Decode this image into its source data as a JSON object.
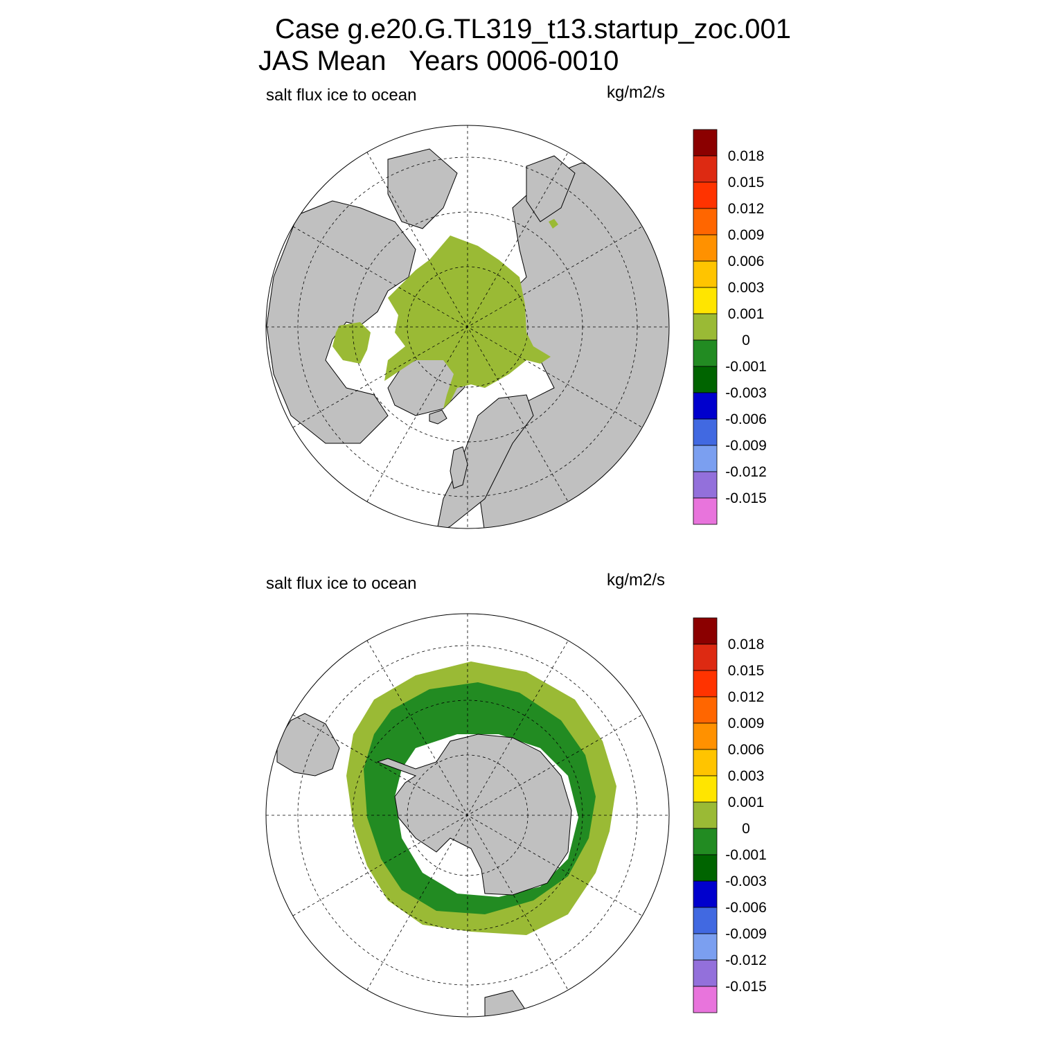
{
  "title": {
    "line1": "Case g.e20.G.TL319_t13.startup_zoc.001",
    "line2": "JAS Mean   Years 0006-0010"
  },
  "panels": [
    {
      "id": "north",
      "variable_label": "salt flux ice to ocean",
      "units_label": "kg/m2/s",
      "hemisphere": "north-polar-stereographic",
      "dominant_fill_color": "#9aba35"
    },
    {
      "id": "south",
      "variable_label": "salt flux ice to ocean",
      "units_label": "kg/m2/s",
      "hemisphere": "south-polar-stereographic",
      "dominant_fill_color": "#228b22"
    }
  ],
  "colorbar": {
    "levels": [
      "0.018",
      "0.015",
      "0.012",
      "0.009",
      "0.006",
      "0.003",
      "0.001",
      "0",
      "-0.001",
      "-0.003",
      "-0.006",
      "-0.009",
      "-0.012",
      "-0.015"
    ],
    "colors": [
      "#8b0000",
      "#dd2a12",
      "#ff3300",
      "#ff6600",
      "#ff9100",
      "#ffc400",
      "#ffe500",
      "#9aba35",
      "#228b22",
      "#006400",
      "#0000cd",
      "#4169e1",
      "#7b9ff0",
      "#9370db",
      "#e874dc"
    ]
  },
  "map_colors": {
    "land": "#c0c0c0",
    "ocean": "#ffffff",
    "coast": "#000000"
  }
}
